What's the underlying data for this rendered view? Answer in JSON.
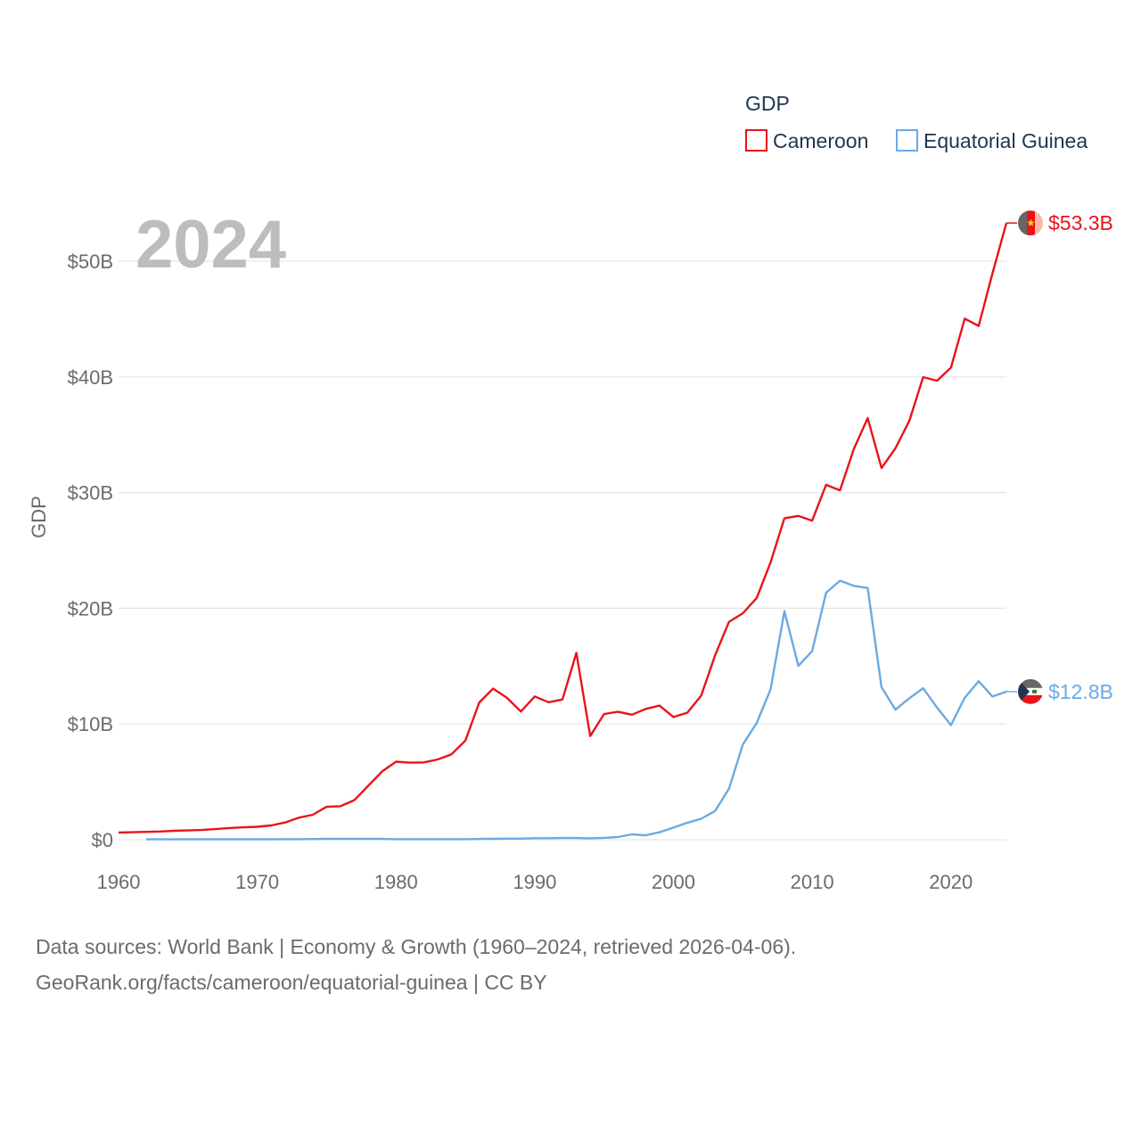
{
  "chart_data": {
    "type": "line",
    "year_label": "2024",
    "ylabel": "GDP",
    "xlabel": "",
    "legend_title": "GDP",
    "legend_position": "top-right",
    "xlim": [
      1960,
      2024
    ],
    "ylim": [
      0,
      55
    ],
    "y_unit": "billion USD",
    "x_ticks": [
      1960,
      1970,
      1980,
      1990,
      2000,
      2010,
      2020
    ],
    "y_ticks": [
      {
        "value": 0,
        "label": "$0"
      },
      {
        "value": 10,
        "label": "$10B"
      },
      {
        "value": 20,
        "label": "$20B"
      },
      {
        "value": 30,
        "label": "$30B"
      },
      {
        "value": 40,
        "label": "$40B"
      },
      {
        "value": 50,
        "label": "$50B"
      }
    ],
    "series": [
      {
        "name": "Cameroon",
        "color": "#e8141b",
        "end_label": "$53.3B",
        "flag": "cameroon-flag-icon",
        "points": [
          [
            1960,
            0.62
          ],
          [
            1961,
            0.65
          ],
          [
            1962,
            0.68
          ],
          [
            1963,
            0.71
          ],
          [
            1964,
            0.77
          ],
          [
            1965,
            0.8
          ],
          [
            1966,
            0.84
          ],
          [
            1967,
            0.92
          ],
          [
            1968,
            1.01
          ],
          [
            1969,
            1.07
          ],
          [
            1970,
            1.12
          ],
          [
            1971,
            1.23
          ],
          [
            1972,
            1.49
          ],
          [
            1973,
            1.9
          ],
          [
            1974,
            2.16
          ],
          [
            1975,
            2.84
          ],
          [
            1976,
            2.9
          ],
          [
            1977,
            3.42
          ],
          [
            1978,
            4.66
          ],
          [
            1979,
            5.9
          ],
          [
            1980,
            6.74
          ],
          [
            1981,
            6.66
          ],
          [
            1982,
            6.68
          ],
          [
            1983,
            6.93
          ],
          [
            1984,
            7.38
          ],
          [
            1985,
            8.57
          ],
          [
            1986,
            11.86
          ],
          [
            1987,
            13.06
          ],
          [
            1988,
            12.26
          ],
          [
            1989,
            11.08
          ],
          [
            1990,
            12.38
          ],
          [
            1991,
            11.88
          ],
          [
            1992,
            12.12
          ],
          [
            1993,
            16.15
          ],
          [
            1994,
            8.96
          ],
          [
            1995,
            10.86
          ],
          [
            1996,
            11.06
          ],
          [
            1997,
            10.8
          ],
          [
            1998,
            11.3
          ],
          [
            1999,
            11.59
          ],
          [
            2000,
            10.6
          ],
          [
            2001,
            10.98
          ],
          [
            2002,
            12.45
          ],
          [
            2003,
            15.93
          ],
          [
            2004,
            18.83
          ],
          [
            2005,
            19.57
          ],
          [
            2006,
            20.89
          ],
          [
            2007,
            23.96
          ],
          [
            2008,
            27.78
          ],
          [
            2009,
            27.98
          ],
          [
            2010,
            27.57
          ],
          [
            2011,
            30.67
          ],
          [
            2012,
            30.19
          ],
          [
            2013,
            33.75
          ],
          [
            2014,
            36.44
          ],
          [
            2015,
            32.13
          ],
          [
            2016,
            33.83
          ],
          [
            2017,
            36.2
          ],
          [
            2018,
            39.98
          ],
          [
            2019,
            39.67
          ],
          [
            2020,
            40.8
          ],
          [
            2021,
            45.04
          ],
          [
            2022,
            44.4
          ],
          [
            2023,
            48.95
          ],
          [
            2024,
            53.3
          ]
        ]
      },
      {
        "name": "Equatorial Guinea",
        "color": "#6aaae4",
        "end_label": "$12.8B",
        "flag": "equatorial-guinea-flag-icon",
        "points": [
          [
            1962,
            0.03
          ],
          [
            1963,
            0.03
          ],
          [
            1964,
            0.03
          ],
          [
            1965,
            0.04
          ],
          [
            1966,
            0.04
          ],
          [
            1967,
            0.04
          ],
          [
            1968,
            0.04
          ],
          [
            1969,
            0.04
          ],
          [
            1970,
            0.04
          ],
          [
            1971,
            0.04
          ],
          [
            1972,
            0.05
          ],
          [
            1973,
            0.05
          ],
          [
            1974,
            0.06
          ],
          [
            1975,
            0.07
          ],
          [
            1976,
            0.07
          ],
          [
            1977,
            0.07
          ],
          [
            1978,
            0.07
          ],
          [
            1979,
            0.07
          ],
          [
            1980,
            0.05
          ],
          [
            1981,
            0.05
          ],
          [
            1982,
            0.05
          ],
          [
            1983,
            0.05
          ],
          [
            1984,
            0.05
          ],
          [
            1985,
            0.05
          ],
          [
            1986,
            0.07
          ],
          [
            1987,
            0.08
          ],
          [
            1988,
            0.09
          ],
          [
            1989,
            0.09
          ],
          [
            1990,
            0.13
          ],
          [
            1991,
            0.13
          ],
          [
            1992,
            0.15
          ],
          [
            1993,
            0.15
          ],
          [
            1994,
            0.12
          ],
          [
            1995,
            0.16
          ],
          [
            1996,
            0.23
          ],
          [
            1997,
            0.46
          ],
          [
            1998,
            0.38
          ],
          [
            1999,
            0.65
          ],
          [
            2000,
            1.05
          ],
          [
            2001,
            1.46
          ],
          [
            2002,
            1.81
          ],
          [
            2003,
            2.48
          ],
          [
            2004,
            4.41
          ],
          [
            2005,
            8.22
          ],
          [
            2006,
            10.09
          ],
          [
            2007,
            12.99
          ],
          [
            2008,
            19.75
          ],
          [
            2009,
            15.03
          ],
          [
            2010,
            16.3
          ],
          [
            2011,
            21.34
          ],
          [
            2012,
            22.39
          ],
          [
            2013,
            21.94
          ],
          [
            2014,
            21.75
          ],
          [
            2015,
            13.18
          ],
          [
            2016,
            11.24
          ],
          [
            2017,
            12.23
          ],
          [
            2018,
            13.09
          ],
          [
            2019,
            11.42
          ],
          [
            2020,
            9.9
          ],
          [
            2021,
            12.27
          ],
          [
            2022,
            13.7
          ],
          [
            2023,
            12.37
          ],
          [
            2024,
            12.8
          ]
        ]
      }
    ]
  },
  "footer": {
    "line1": "Data sources: World Bank | Economy & Growth (1960–2024, retrieved 2026-04-06).",
    "line2": "GeoRank.org/facts/cameroon/equatorial-guinea | CC BY"
  }
}
